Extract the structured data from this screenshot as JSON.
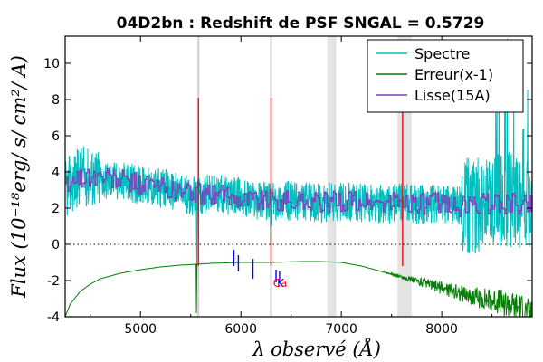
{
  "chart_data": {
    "type": "line",
    "title": "04D2bn : Redshift de PSF SNGAL = 0.5729",
    "xlabel": "λ observé (Å)",
    "ylabel": "Flux (10⁻¹⁸erg/ s/ cm²/ A)",
    "xlim": [
      4250,
      8900
    ],
    "ylim": [
      -4,
      11.5
    ],
    "xticks": [
      5000,
      6000,
      7000,
      8000
    ],
    "yticks": [
      -4,
      -2,
      0,
      2,
      4,
      6,
      8,
      10
    ],
    "grid": false,
    "legend_position": "top-right",
    "series": [
      {
        "name": "Spectre",
        "color": "#00bfbf",
        "x": [
          4250,
          4400,
          4600,
          4800,
          5000,
          5200,
          5400,
          5556,
          5560,
          5565,
          5700,
          5900,
          6100,
          6290,
          6300,
          6310,
          6500,
          6700,
          6850,
          7000,
          7200,
          7400,
          7600,
          7800,
          8000,
          8200,
          8400,
          8600,
          8700,
          8800,
          8900
        ],
        "y": [
          3.0,
          3.8,
          3.6,
          3.5,
          3.3,
          3.1,
          2.9,
          2.6,
          -1.5,
          2.6,
          2.8,
          2.7,
          2.5,
          2.4,
          -0.5,
          2.4,
          2.4,
          2.3,
          2.3,
          2.4,
          2.3,
          2.2,
          2.3,
          2.2,
          2.3,
          2.1,
          2.2,
          2.4,
          2.5,
          2.3,
          2.4
        ]
      },
      {
        "name": "Erreur(x-1)",
        "color": "#007f00",
        "x": [
          4250,
          4300,
          4400,
          4500,
          4600,
          4800,
          5000,
          5200,
          5400,
          5556,
          5558,
          5560,
          5700,
          6000,
          6300,
          6600,
          6800,
          7000,
          7200,
          7400,
          7600,
          7800,
          8000,
          8200,
          8400,
          8600,
          8800,
          8900
        ],
        "y": [
          -4.0,
          -3.3,
          -2.6,
          -2.2,
          -1.9,
          -1.6,
          -1.4,
          -1.25,
          -1.15,
          -1.1,
          -3.8,
          -1.1,
          -1.05,
          -1.0,
          -1.0,
          -0.95,
          -0.95,
          -1.0,
          -1.2,
          -1.5,
          -1.8,
          -2.1,
          -2.4,
          -2.7,
          -3.0,
          -3.2,
          -3.6,
          -4.0
        ]
      },
      {
        "name": "Lisse(15A)",
        "color": "#7f3fbf",
        "x": [
          4250,
          4400,
          4600,
          4800,
          5000,
          5200,
          5400,
          5600,
          5800,
          6000,
          6200,
          6400,
          6600,
          6800,
          7000,
          7200,
          7400,
          7600,
          7800,
          8000,
          8200,
          8400,
          8600,
          8800,
          8900
        ],
        "y": [
          3.2,
          3.7,
          3.7,
          3.5,
          3.3,
          3.1,
          2.9,
          2.8,
          2.7,
          2.6,
          2.5,
          2.4,
          2.4,
          2.3,
          2.4,
          2.3,
          2.2,
          2.3,
          2.2,
          2.3,
          2.1,
          2.2,
          2.3,
          2.2,
          2.3
        ]
      }
    ],
    "legend": [
      "Spectre",
      "Erreur(x-1)",
      "Lisse(15A)"
    ],
    "shaded_bands": [
      [
        6860,
        6950
      ],
      [
        7560,
        7700
      ]
    ],
    "vertical_lines": [
      5577,
      6300
    ],
    "zero_line": 0,
    "sky_lines": [
      5577,
      6300,
      7610
    ],
    "line_markers": [
      5930,
      5975,
      6120,
      6350,
      6385
    ],
    "annotations": [
      "K",
      "Ca"
    ]
  }
}
